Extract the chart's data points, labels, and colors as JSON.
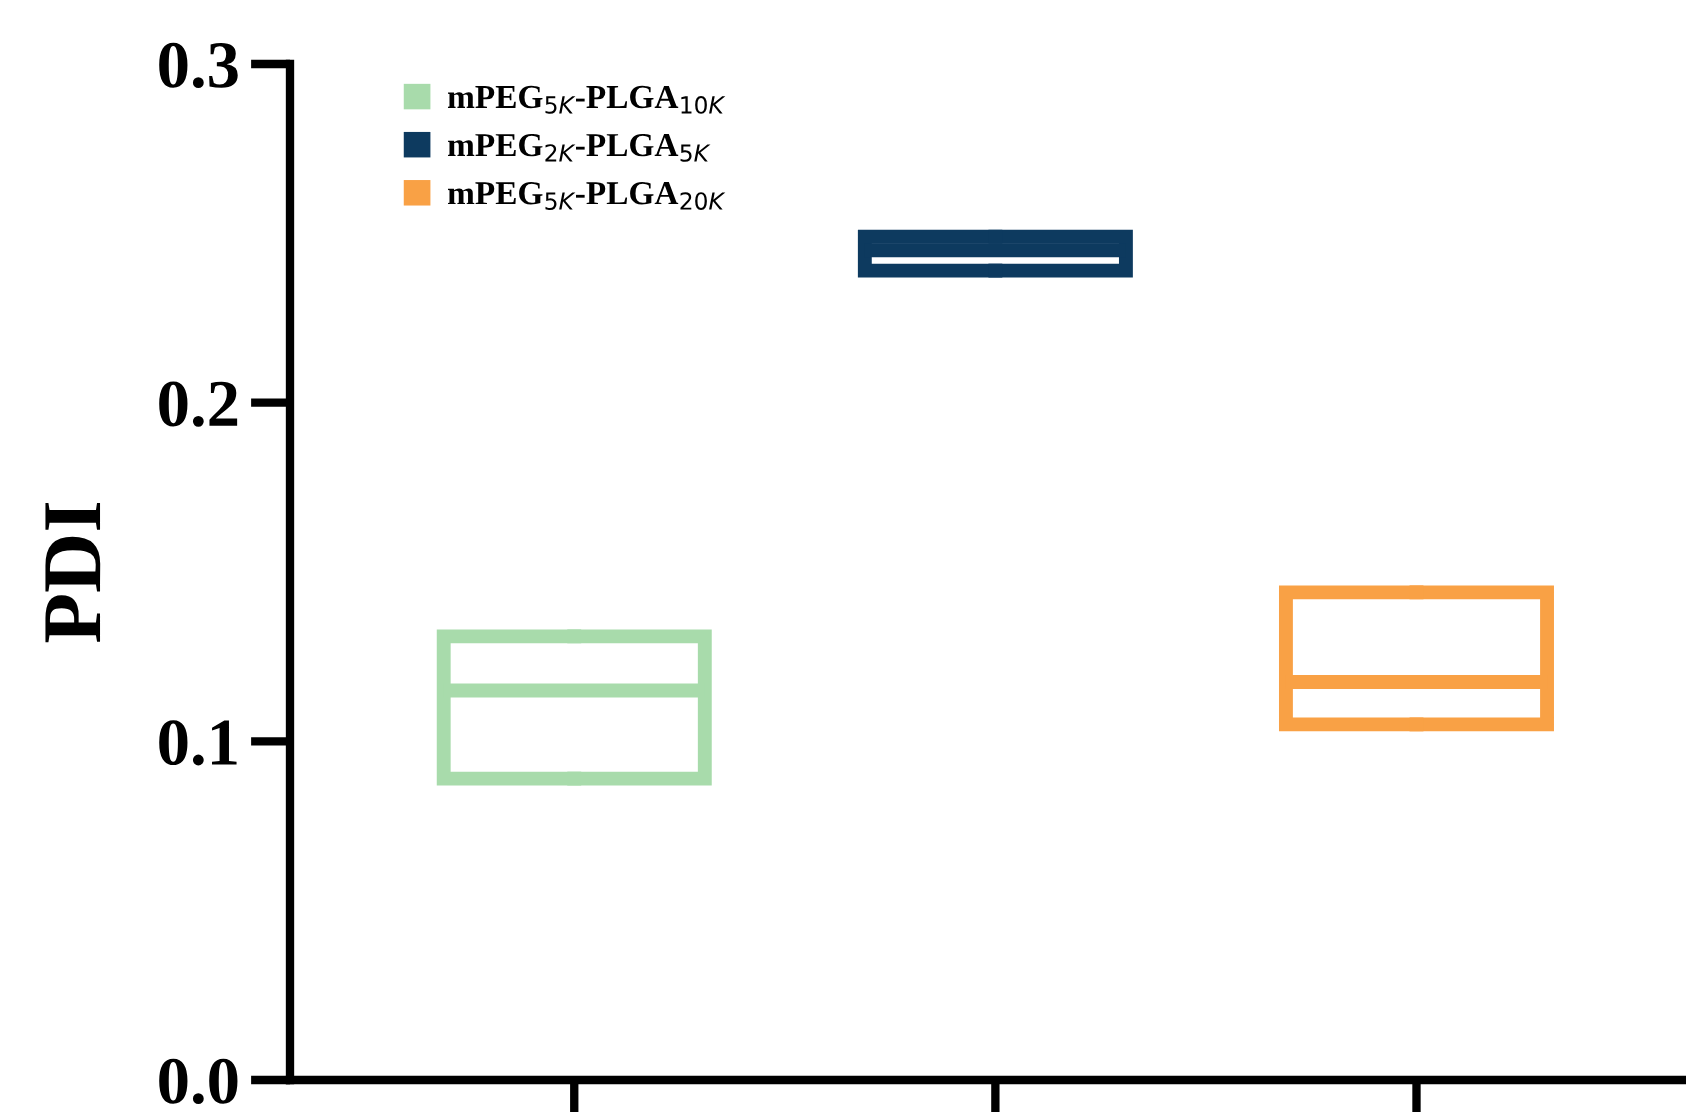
{
  "chart_data": {
    "type": "box",
    "ylabel": "PDI",
    "categories": [
      null,
      null,
      null
    ],
    "ylim": [
      0,
      0.3
    ],
    "yticks": [
      {
        "value": 0,
        "label": "0.0"
      },
      0.1,
      0.2,
      0.3
    ],
    "grid": false,
    "legend": "top left",
    "series": [
      {
        "name": "mPEG$_{5K}$-PLGA$_{10K}$",
        "color": "#a8dbab",
        "boxes": [
          {
            "low": 0.089,
            "q1": 0.089,
            "median": 0.115,
            "q3": 0.131,
            "high": 0.131
          },
          null,
          null
        ]
      },
      {
        "name": "mPEG$_{2K}$-PLGA$_{5K}$",
        "color": "#0d3a5f",
        "boxes": [
          null,
          {
            "low": 0.239,
            "q1": 0.239,
            "median": 0.245,
            "q3": 0.249,
            "high": 0.249
          },
          null
        ]
      },
      {
        "name": "mPEG$_{5K}$-PLGA$_{20K}$",
        "color": "#f9a145",
        "boxes": [
          null,
          null,
          {
            "low": 0.105,
            "q1": 0.105,
            "median": 0.1175,
            "q3": 0.144,
            "high": 0.144
          }
        ]
      }
    ]
  }
}
